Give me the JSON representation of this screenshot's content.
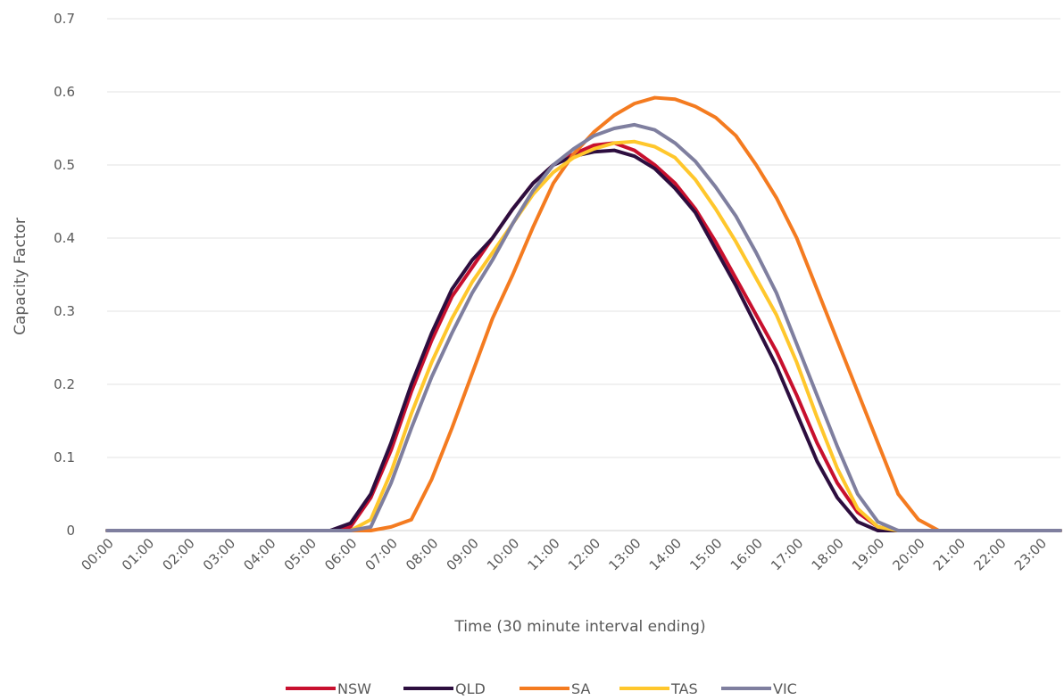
{
  "chart_data": {
    "type": "line",
    "xlabel": "Time (30 minute interval ending)",
    "ylabel": "Capacity Factor",
    "ylim": [
      0,
      0.7
    ],
    "yticks": [
      "0",
      "0.1",
      "0.2",
      "0.3",
      "0.4",
      "0.5",
      "0.6",
      "0.7"
    ],
    "xtick_labels": [
      "00:00",
      "01:00",
      "02:00",
      "03:00",
      "04:00",
      "05:00",
      "06:00",
      "07:00",
      "08:00",
      "09:00",
      "10:00",
      "11:00",
      "12:00",
      "13:00",
      "14:00",
      "15:00",
      "16:00",
      "17:00",
      "18:00",
      "19:00",
      "20:00",
      "21:00",
      "22:00",
      "23:00"
    ],
    "x": [
      "00:00",
      "00:30",
      "01:00",
      "01:30",
      "02:00",
      "02:30",
      "03:00",
      "03:30",
      "04:00",
      "04:30",
      "05:00",
      "05:30",
      "06:00",
      "06:30",
      "07:00",
      "07:30",
      "08:00",
      "08:30",
      "09:00",
      "09:30",
      "10:00",
      "10:30",
      "11:00",
      "11:30",
      "12:00",
      "12:30",
      "13:00",
      "13:30",
      "14:00",
      "14:30",
      "15:00",
      "15:30",
      "16:00",
      "16:30",
      "17:00",
      "17:30",
      "18:00",
      "18:30",
      "19:00",
      "19:30",
      "20:00",
      "20:30",
      "21:00",
      "21:30",
      "22:00",
      "22:30",
      "23:00",
      "23:30"
    ],
    "grid": "horizontal",
    "legend_position": "bottom",
    "series": [
      {
        "name": "NSW",
        "color": "#C8102E",
        "values": [
          0,
          0,
          0,
          0,
          0,
          0,
          0,
          0,
          0,
          0,
          0,
          0,
          0.005,
          0.045,
          0.11,
          0.19,
          0.26,
          0.32,
          0.36,
          0.4,
          0.44,
          0.475,
          0.5,
          0.515,
          0.527,
          0.53,
          0.52,
          0.5,
          0.475,
          0.44,
          0.395,
          0.345,
          0.295,
          0.245,
          0.185,
          0.12,
          0.065,
          0.025,
          0.005,
          0,
          0,
          0,
          0,
          0,
          0,
          0,
          0,
          0
        ]
      },
      {
        "name": "QLD",
        "color": "#2D0E3F",
        "values": [
          0,
          0,
          0,
          0,
          0,
          0,
          0,
          0,
          0,
          0,
          0,
          0,
          0.01,
          0.05,
          0.12,
          0.2,
          0.27,
          0.33,
          0.37,
          0.4,
          0.44,
          0.475,
          0.5,
          0.512,
          0.518,
          0.52,
          0.512,
          0.495,
          0.468,
          0.435,
          0.385,
          0.335,
          0.28,
          0.225,
          0.16,
          0.095,
          0.045,
          0.012,
          0,
          0,
          0,
          0,
          0,
          0,
          0,
          0,
          0,
          0
        ]
      },
      {
        "name": "SA",
        "color": "#F47B20",
        "values": [
          0,
          0,
          0,
          0,
          0,
          0,
          0,
          0,
          0,
          0,
          0,
          0,
          0,
          0,
          0.005,
          0.015,
          0.07,
          0.14,
          0.215,
          0.29,
          0.35,
          0.415,
          0.475,
          0.515,
          0.545,
          0.568,
          0.584,
          0.592,
          0.59,
          0.58,
          0.565,
          0.54,
          0.5,
          0.455,
          0.4,
          0.33,
          0.26,
          0.19,
          0.12,
          0.05,
          0.015,
          0,
          0,
          0,
          0,
          0,
          0,
          0
        ]
      },
      {
        "name": "TAS",
        "color": "#FFC72C",
        "values": [
          0,
          0,
          0,
          0,
          0,
          0,
          0,
          0,
          0,
          0,
          0,
          0,
          0,
          0.015,
          0.08,
          0.16,
          0.23,
          0.29,
          0.34,
          0.38,
          0.42,
          0.46,
          0.49,
          0.51,
          0.522,
          0.53,
          0.532,
          0.525,
          0.51,
          0.48,
          0.44,
          0.395,
          0.345,
          0.295,
          0.23,
          0.155,
          0.085,
          0.03,
          0.005,
          0,
          0,
          0,
          0,
          0,
          0,
          0,
          0,
          0
        ]
      },
      {
        "name": "VIC",
        "color": "#7F7F9F",
        "values": [
          0,
          0,
          0,
          0,
          0,
          0,
          0,
          0,
          0,
          0,
          0,
          0,
          0,
          0.005,
          0.065,
          0.14,
          0.21,
          0.27,
          0.325,
          0.37,
          0.42,
          0.465,
          0.5,
          0.522,
          0.54,
          0.55,
          0.555,
          0.548,
          0.53,
          0.505,
          0.47,
          0.43,
          0.38,
          0.325,
          0.255,
          0.185,
          0.115,
          0.05,
          0.012,
          0,
          0,
          0,
          0,
          0,
          0,
          0,
          0,
          0
        ]
      }
    ]
  }
}
